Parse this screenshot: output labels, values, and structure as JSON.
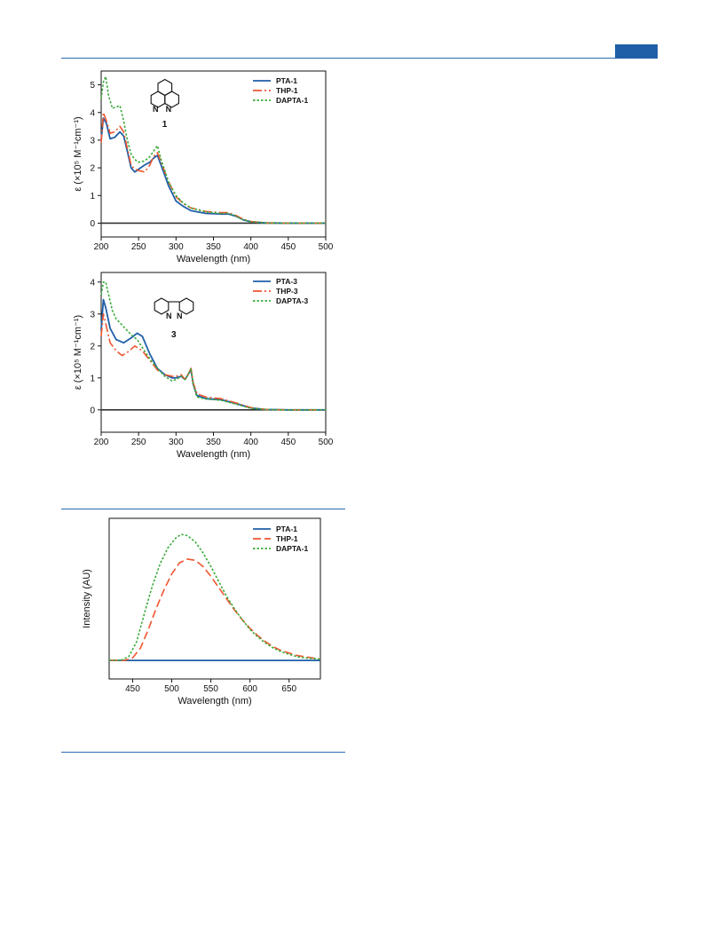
{
  "colors": {
    "PTA": "#1f5fa8",
    "THP": "#ef5630",
    "DAPTA": "#3aab3a",
    "rule": "#2b6cb0"
  },
  "chart_data": [
    {
      "type": "line",
      "xlabel": "Wavelength (nm)",
      "ylabel": "ε (×10⁵ M⁻¹cm⁻¹)",
      "xlim": [
        200,
        500
      ],
      "ylim": [
        -0.5,
        5.5
      ],
      "xticks": [
        200,
        250,
        300,
        350,
        400,
        450,
        500
      ],
      "yticks": [
        0,
        1,
        2,
        3,
        4,
        5
      ],
      "structure_label": "1",
      "structure_atoms": [
        "N",
        "N"
      ],
      "legend_position": "top-right",
      "series": [
        {
          "name": "PTA-1",
          "style": "solid",
          "color_key": "PTA",
          "points": [
            [
              200,
              3.0
            ],
            [
              203,
              3.8
            ],
            [
              207,
              3.6
            ],
            [
              212,
              3.05
            ],
            [
              218,
              3.1
            ],
            [
              225,
              3.3
            ],
            [
              230,
              3.15
            ],
            [
              235,
              2.6
            ],
            [
              240,
              2.0
            ],
            [
              245,
              1.85
            ],
            [
              250,
              1.95
            ],
            [
              258,
              2.1
            ],
            [
              265,
              2.2
            ],
            [
              270,
              2.35
            ],
            [
              275,
              2.45
            ],
            [
              280,
              2.1
            ],
            [
              290,
              1.35
            ],
            [
              300,
              0.8
            ],
            [
              310,
              0.6
            ],
            [
              320,
              0.45
            ],
            [
              340,
              0.35
            ],
            [
              360,
              0.33
            ],
            [
              370,
              0.33
            ],
            [
              380,
              0.25
            ],
            [
              390,
              0.12
            ],
            [
              400,
              0.05
            ],
            [
              420,
              0.01
            ],
            [
              450,
              0.0
            ],
            [
              500,
              0.0
            ]
          ]
        },
        {
          "name": "THP-1",
          "style": "dashdot",
          "color_key": "THP",
          "points": [
            [
              200,
              2.9
            ],
            [
              203,
              4.0
            ],
            [
              207,
              3.7
            ],
            [
              212,
              3.25
            ],
            [
              218,
              3.3
            ],
            [
              225,
              3.5
            ],
            [
              230,
              3.3
            ],
            [
              235,
              2.7
            ],
            [
              240,
              2.1
            ],
            [
              245,
              1.95
            ],
            [
              250,
              1.9
            ],
            [
              258,
              1.85
            ],
            [
              265,
              2.1
            ],
            [
              270,
              2.4
            ],
            [
              275,
              2.55
            ],
            [
              280,
              2.2
            ],
            [
              290,
              1.5
            ],
            [
              300,
              0.95
            ],
            [
              310,
              0.7
            ],
            [
              320,
              0.55
            ],
            [
              340,
              0.42
            ],
            [
              360,
              0.38
            ],
            [
              370,
              0.38
            ],
            [
              380,
              0.28
            ],
            [
              390,
              0.14
            ],
            [
              400,
              0.06
            ],
            [
              420,
              0.01
            ],
            [
              450,
              0.0
            ],
            [
              500,
              0.0
            ]
          ]
        },
        {
          "name": "DAPTA-1",
          "style": "dotted",
          "color_key": "DAPTA",
          "points": [
            [
              200,
              4.5
            ],
            [
              203,
              5.1
            ],
            [
              206,
              5.3
            ],
            [
              210,
              4.6
            ],
            [
              215,
              4.15
            ],
            [
              220,
              4.2
            ],
            [
              225,
              4.25
            ],
            [
              230,
              3.7
            ],
            [
              235,
              3.0
            ],
            [
              240,
              2.5
            ],
            [
              245,
              2.3
            ],
            [
              250,
              2.2
            ],
            [
              258,
              2.25
            ],
            [
              265,
              2.4
            ],
            [
              270,
              2.6
            ],
            [
              275,
              2.8
            ],
            [
              280,
              2.3
            ],
            [
              290,
              1.5
            ],
            [
              300,
              1.0
            ],
            [
              310,
              0.72
            ],
            [
              320,
              0.55
            ],
            [
              340,
              0.4
            ],
            [
              360,
              0.35
            ],
            [
              370,
              0.35
            ],
            [
              380,
              0.26
            ],
            [
              390,
              0.12
            ],
            [
              400,
              0.05
            ],
            [
              420,
              0.01
            ],
            [
              450,
              0.0
            ],
            [
              500,
              0.0
            ]
          ]
        }
      ]
    },
    {
      "type": "line",
      "xlabel": "Wavelength (nm)",
      "ylabel": "ε (×10⁵ M⁻¹cm⁻¹)",
      "xlim": [
        200,
        500
      ],
      "ylim": [
        -0.7,
        4.3
      ],
      "xticks": [
        200,
        250,
        300,
        350,
        400,
        450,
        500
      ],
      "yticks": [
        0,
        1,
        2,
        3,
        4
      ],
      "structure_label": "3",
      "structure_atoms": [
        "N",
        "N"
      ],
      "legend_position": "top-right",
      "series": [
        {
          "name": "PTA-3",
          "style": "solid",
          "color_key": "PTA",
          "points": [
            [
              200,
              2.5
            ],
            [
              203,
              3.45
            ],
            [
              206,
              3.2
            ],
            [
              212,
              2.55
            ],
            [
              220,
              2.2
            ],
            [
              230,
              2.1
            ],
            [
              240,
              2.25
            ],
            [
              248,
              2.4
            ],
            [
              255,
              2.3
            ],
            [
              265,
              1.75
            ],
            [
              275,
              1.3
            ],
            [
              285,
              1.1
            ],
            [
              295,
              1.0
            ],
            [
              300,
              1.0
            ],
            [
              307,
              1.05
            ],
            [
              312,
              0.95
            ],
            [
              316,
              1.1
            ],
            [
              320,
              1.25
            ],
            [
              323,
              0.8
            ],
            [
              328,
              0.45
            ],
            [
              340,
              0.35
            ],
            [
              360,
              0.32
            ],
            [
              380,
              0.2
            ],
            [
              400,
              0.06
            ],
            [
              420,
              0.01
            ],
            [
              450,
              0.0
            ],
            [
              500,
              0.0
            ]
          ]
        },
        {
          "name": "THP-3",
          "style": "dashdot",
          "color_key": "THP",
          "points": [
            [
              200,
              2.3
            ],
            [
              203,
              3.0
            ],
            [
              206,
              2.7
            ],
            [
              212,
              2.1
            ],
            [
              220,
              1.85
            ],
            [
              228,
              1.7
            ],
            [
              235,
              1.8
            ],
            [
              245,
              2.0
            ],
            [
              255,
              1.85
            ],
            [
              265,
              1.55
            ],
            [
              275,
              1.25
            ],
            [
              285,
              1.1
            ],
            [
              295,
              1.05
            ],
            [
              300,
              1.05
            ],
            [
              307,
              1.1
            ],
            [
              312,
              0.95
            ],
            [
              316,
              1.1
            ],
            [
              320,
              1.3
            ],
            [
              323,
              0.85
            ],
            [
              328,
              0.5
            ],
            [
              340,
              0.4
            ],
            [
              360,
              0.35
            ],
            [
              380,
              0.22
            ],
            [
              400,
              0.07
            ],
            [
              420,
              0.01
            ],
            [
              450,
              0.0
            ],
            [
              500,
              0.0
            ]
          ]
        },
        {
          "name": "DAPTA-3",
          "style": "dotted",
          "color_key": "DAPTA",
          "points": [
            [
              200,
              3.6
            ],
            [
              203,
              4.0
            ],
            [
              206,
              4.0
            ],
            [
              210,
              3.6
            ],
            [
              215,
              3.1
            ],
            [
              220,
              2.85
            ],
            [
              230,
              2.6
            ],
            [
              240,
              2.35
            ],
            [
              248,
              2.2
            ],
            [
              255,
              1.95
            ],
            [
              265,
              1.6
            ],
            [
              275,
              1.3
            ],
            [
              285,
              1.05
            ],
            [
              295,
              0.9
            ],
            [
              300,
              0.95
            ],
            [
              307,
              1.05
            ],
            [
              312,
              0.95
            ],
            [
              316,
              1.1
            ],
            [
              320,
              1.3
            ],
            [
              323,
              0.8
            ],
            [
              328,
              0.4
            ],
            [
              340,
              0.34
            ],
            [
              360,
              0.3
            ],
            [
              380,
              0.18
            ],
            [
              400,
              0.05
            ],
            [
              420,
              0.01
            ],
            [
              450,
              0.0
            ],
            [
              500,
              0.0
            ]
          ]
        }
      ]
    },
    {
      "type": "line",
      "xlabel": "Wavelength (nm)",
      "ylabel": "Intensity (AU)",
      "xlim": [
        420,
        690
      ],
      "ylim": [
        -0.15,
        1.15
      ],
      "xticks": [
        450,
        500,
        550,
        600,
        650
      ],
      "yticks": [],
      "legend_position": "top-right",
      "series": [
        {
          "name": "PTA-1",
          "style": "solid",
          "color_key": "PTA",
          "points": [
            [
              420,
              0.0
            ],
            [
              450,
              0.0
            ],
            [
              500,
              0.0
            ],
            [
              550,
              0.0
            ],
            [
              600,
              0.0
            ],
            [
              650,
              0.0
            ],
            [
              690,
              0.0
            ]
          ]
        },
        {
          "name": "THP-1",
          "style": "dashed",
          "color_key": "THP",
          "points": [
            [
              420,
              0.0
            ],
            [
              440,
              0.0
            ],
            [
              450,
              0.02
            ],
            [
              460,
              0.1
            ],
            [
              470,
              0.25
            ],
            [
              480,
              0.42
            ],
            [
              490,
              0.57
            ],
            [
              500,
              0.7
            ],
            [
              510,
              0.79
            ],
            [
              520,
              0.82
            ],
            [
              530,
              0.81
            ],
            [
              540,
              0.76
            ],
            [
              550,
              0.68
            ],
            [
              560,
              0.59
            ],
            [
              570,
              0.5
            ],
            [
              580,
              0.41
            ],
            [
              590,
              0.33
            ],
            [
              600,
              0.26
            ],
            [
              610,
              0.2
            ],
            [
              620,
              0.15
            ],
            [
              630,
              0.11
            ],
            [
              640,
              0.08
            ],
            [
              650,
              0.06
            ],
            [
              660,
              0.04
            ],
            [
              670,
              0.03
            ],
            [
              690,
              0.01
            ]
          ]
        },
        {
          "name": "DAPTA-1",
          "style": "dotted",
          "color_key": "DAPTA",
          "points": [
            [
              420,
              0.0
            ],
            [
              435,
              0.0
            ],
            [
              445,
              0.03
            ],
            [
              455,
              0.15
            ],
            [
              465,
              0.38
            ],
            [
              475,
              0.6
            ],
            [
              485,
              0.78
            ],
            [
              495,
              0.91
            ],
            [
              505,
              0.99
            ],
            [
              512,
              1.02
            ],
            [
              520,
              1.01
            ],
            [
              530,
              0.96
            ],
            [
              540,
              0.87
            ],
            [
              550,
              0.76
            ],
            [
              560,
              0.64
            ],
            [
              570,
              0.52
            ],
            [
              580,
              0.42
            ],
            [
              590,
              0.33
            ],
            [
              600,
              0.25
            ],
            [
              610,
              0.19
            ],
            [
              620,
              0.14
            ],
            [
              630,
              0.1
            ],
            [
              640,
              0.07
            ],
            [
              650,
              0.05
            ],
            [
              660,
              0.03
            ],
            [
              670,
              0.02
            ],
            [
              690,
              0.01
            ]
          ]
        }
      ]
    }
  ]
}
